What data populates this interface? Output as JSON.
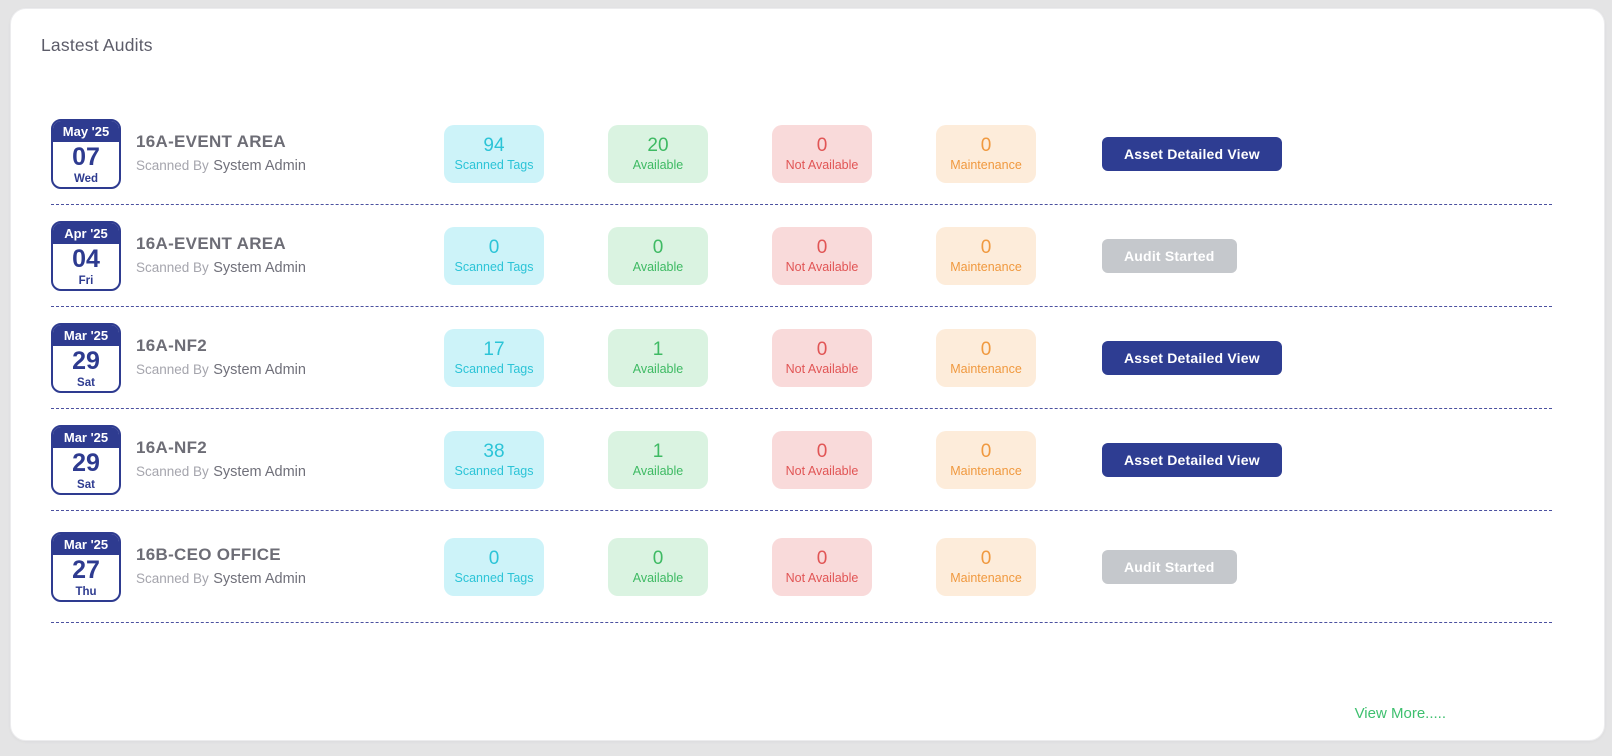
{
  "panel": {
    "title": "Lastest Audits",
    "view_more_label": "View More....."
  },
  "colors": {
    "navy": "#2e3b90",
    "button_primary": "#2e3d92",
    "button_disabled": "#c5c8cc",
    "cyan": "#2cc4d7",
    "green": "#3eba63",
    "red": "#e15555",
    "orange": "#f0993f",
    "divider": "#4b51a0",
    "view_more": "#3ec06f"
  },
  "rows": [
    {
      "date": {
        "month_year": "May '25",
        "day": "07",
        "weekday": "Wed"
      },
      "location": "16A-EVENT AREA",
      "scanned_by_label": "Scanned By",
      "scanned_by": "System Admin",
      "stats": {
        "scanned_tags": {
          "value": "94",
          "label": "Scanned Tags"
        },
        "available": {
          "value": "20",
          "label": "Available"
        },
        "not_available": {
          "value": "0",
          "label": "Not Available"
        },
        "maintenance": {
          "value": "0",
          "label": "Maintenance"
        }
      },
      "action": {
        "label": "Asset Detailed View",
        "type": "primary"
      }
    },
    {
      "date": {
        "month_year": "Apr '25",
        "day": "04",
        "weekday": "Fri"
      },
      "location": "16A-EVENT AREA",
      "scanned_by_label": "Scanned By",
      "scanned_by": "System Admin",
      "stats": {
        "scanned_tags": {
          "value": "0",
          "label": "Scanned Tags"
        },
        "available": {
          "value": "0",
          "label": "Available"
        },
        "not_available": {
          "value": "0",
          "label": "Not Available"
        },
        "maintenance": {
          "value": "0",
          "label": "Maintenance"
        }
      },
      "action": {
        "label": "Audit Started",
        "type": "disabled"
      }
    },
    {
      "date": {
        "month_year": "Mar '25",
        "day": "29",
        "weekday": "Sat"
      },
      "location": "16A-NF2",
      "scanned_by_label": "Scanned By",
      "scanned_by": "System Admin",
      "stats": {
        "scanned_tags": {
          "value": "17",
          "label": "Scanned Tags"
        },
        "available": {
          "value": "1",
          "label": "Available"
        },
        "not_available": {
          "value": "0",
          "label": "Not Available"
        },
        "maintenance": {
          "value": "0",
          "label": "Maintenance"
        }
      },
      "action": {
        "label": "Asset Detailed View",
        "type": "primary"
      }
    },
    {
      "date": {
        "month_year": "Mar '25",
        "day": "29",
        "weekday": "Sat"
      },
      "location": "16A-NF2",
      "scanned_by_label": "Scanned By",
      "scanned_by": "System Admin",
      "stats": {
        "scanned_tags": {
          "value": "38",
          "label": "Scanned Tags"
        },
        "available": {
          "value": "1",
          "label": "Available"
        },
        "not_available": {
          "value": "0",
          "label": "Not Available"
        },
        "maintenance": {
          "value": "0",
          "label": "Maintenance"
        }
      },
      "action": {
        "label": "Asset Detailed View",
        "type": "primary"
      }
    },
    {
      "date": {
        "month_year": "Mar '25",
        "day": "27",
        "weekday": "Thu"
      },
      "location": "16B-CEO OFFICE",
      "scanned_by_label": "Scanned By",
      "scanned_by": "System Admin",
      "stats": {
        "scanned_tags": {
          "value": "0",
          "label": "Scanned Tags"
        },
        "available": {
          "value": "0",
          "label": "Available"
        },
        "not_available": {
          "value": "0",
          "label": "Not Available"
        },
        "maintenance": {
          "value": "0",
          "label": "Maintenance"
        }
      },
      "action": {
        "label": "Audit Started",
        "type": "disabled"
      }
    }
  ]
}
